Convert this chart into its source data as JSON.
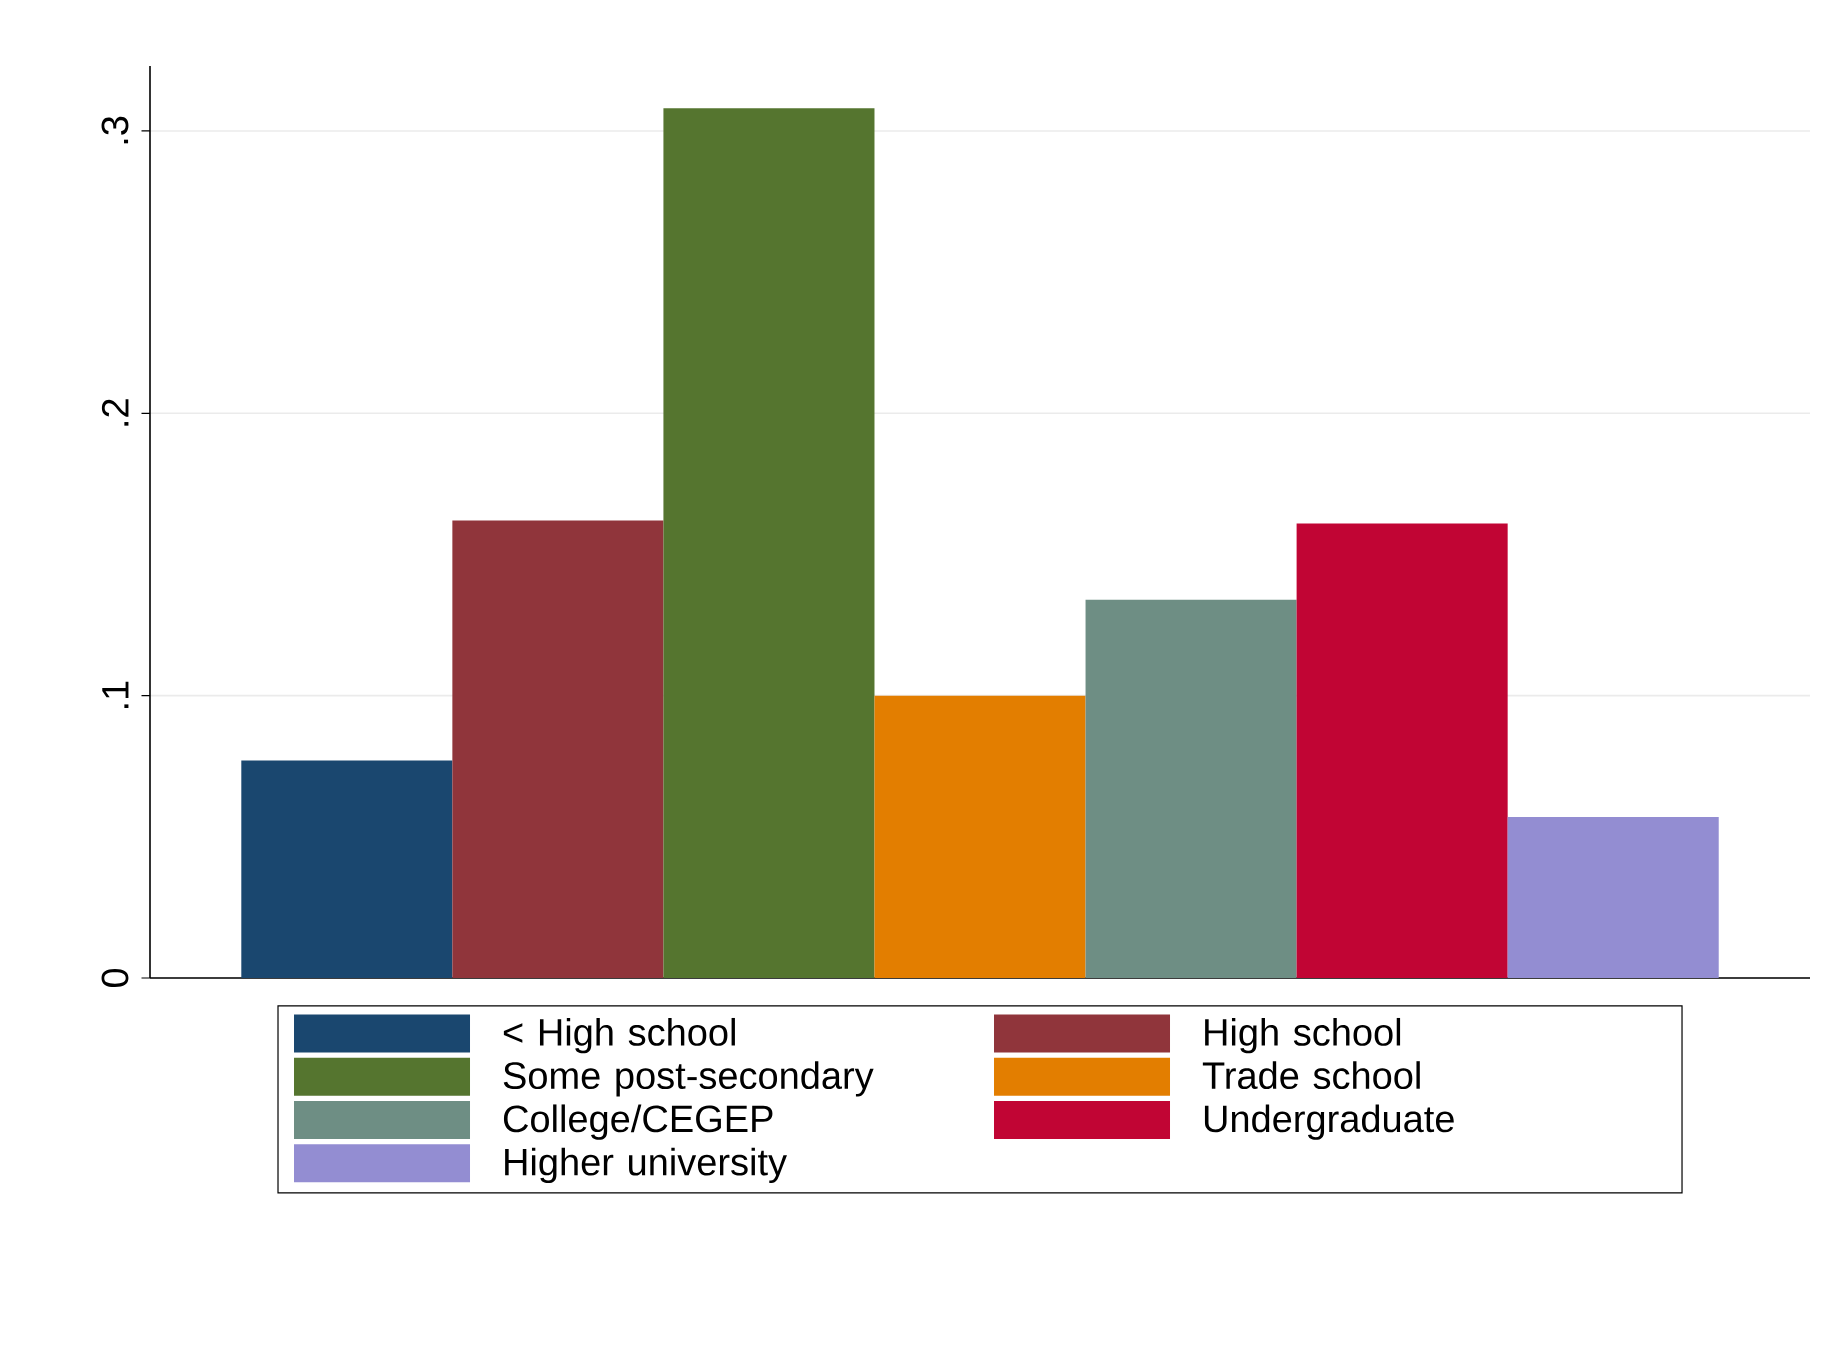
{
  "chart_data": {
    "type": "bar",
    "categories": [
      null
    ],
    "series": [
      {
        "name": "< High school",
        "color": "#1a476f",
        "values": [
          0.077
        ]
      },
      {
        "name": "High school",
        "color": "#90353b",
        "values": [
          0.162
        ]
      },
      {
        "name": "Some post-secondary",
        "color": "#55752f",
        "values": [
          0.308
        ]
      },
      {
        "name": "Trade school",
        "color": "#e37e00",
        "values": [
          0.1
        ]
      },
      {
        "name": "College/CEGEP",
        "color": "#6e8e84",
        "values": [
          0.134
        ]
      },
      {
        "name": "Undergraduate",
        "color": "#c10534",
        "values": [
          0.161
        ]
      },
      {
        "name": "Higher university",
        "color": "#938dd2",
        "values": [
          0.057
        ]
      }
    ],
    "ylim": [
      0,
      0.323
    ],
    "yticks": [
      0,
      {
        "value": 0.1,
        "label": ".1"
      },
      {
        "value": 0.2,
        "label": ".2"
      },
      {
        "value": 0.3,
        "label": ".3"
      }
    ],
    "grid": "y",
    "legend": "bottom",
    "tick_labels": "y"
  }
}
